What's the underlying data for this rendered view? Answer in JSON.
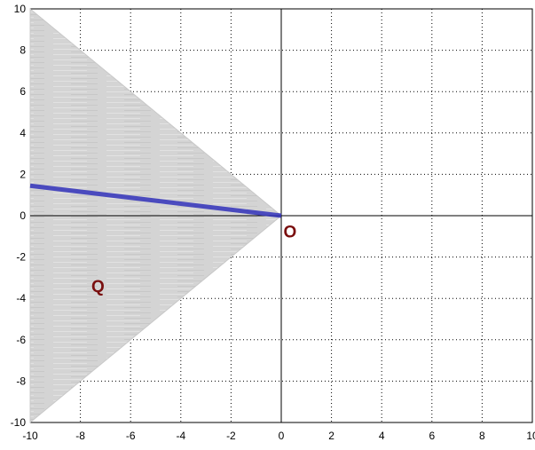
{
  "chart_data": {
    "type": "area",
    "xlim": [
      -10,
      10
    ],
    "ylim": [
      -10,
      10
    ],
    "xticks": [
      "-10",
      "-8",
      "-6",
      "-4",
      "-2",
      "0",
      "2",
      "4",
      "6",
      "8",
      "10"
    ],
    "yticks": [
      "10",
      "8",
      "6",
      "4",
      "2",
      "0",
      "-2",
      "-4",
      "-6",
      "-8",
      "-10"
    ],
    "grid": true,
    "grid_style": "dotted",
    "axes_through_origin": true,
    "region": {
      "polygon": [
        [
          -10,
          10
        ],
        [
          0,
          0
        ],
        [
          -10,
          -10
        ]
      ],
      "color": "#d4d4d4"
    },
    "line": {
      "points": [
        [
          -10,
          1.45
        ],
        [
          0,
          0
        ]
      ],
      "color": "#3333bb"
    },
    "annotations": [
      {
        "text": "O",
        "x": 0.35,
        "y": -0.75,
        "color": "#7a0f0f"
      },
      {
        "text": "Q",
        "x": -7.3,
        "y": -3.4,
        "color": "#7a0f0f"
      }
    ]
  }
}
